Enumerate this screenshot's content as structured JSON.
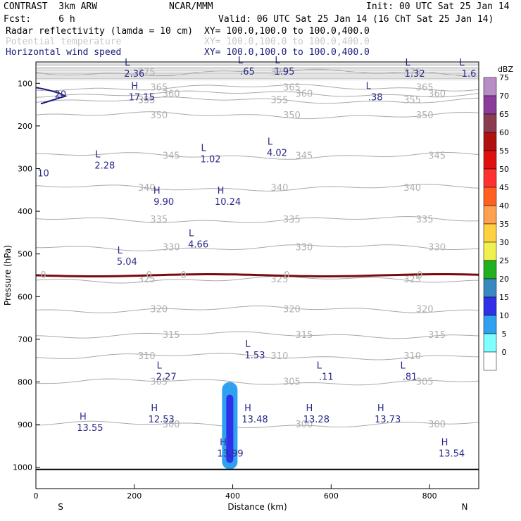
{
  "header": {
    "line1_left": "CONTRAST  3km ARW",
    "line1_mid": "NCAR/MMM",
    "line1_right": "Init: 00 UTC Sat 25 Jan 14",
    "line2_left": "Fcst:     6 h",
    "line2_right": "Valid: 06 UTC Sat 25 Jan 14 (16 ChT Sat 25 Jan 14)",
    "field1_name": "Radar reflectivity (lamda = 10 cm)",
    "field1_xy": "XY= 100.0,100.0 to 100.0,400.0",
    "field2_name": "Potential temperature",
    "field2_xy": "XY= 100.0,100.0 to 100.0,400.0",
    "field3_name": "Horizontal wind speed",
    "field3_xy": "XY= 100.0,100.0 to 100.0,400.0"
  },
  "colors": {
    "theta": "#aaaaaa",
    "wind": "#1a1a7a",
    "freezing": "#7a0a0a",
    "ground": "#000000"
  },
  "chart_data": {
    "type": "cross-section",
    "xlabel": "Distance (km)",
    "ylabel": "Pressure (hPa)",
    "xlim": [
      0,
      900
    ],
    "ylim_hPa": [
      1050,
      50
    ],
    "xticks": [
      "0",
      "200",
      "400",
      "600",
      "800"
    ],
    "xtick_values": [
      0,
      200,
      400,
      600,
      800
    ],
    "yticks": [
      "100",
      "200",
      "300",
      "400",
      "500",
      "600",
      "700",
      "800",
      "900",
      "1000"
    ],
    "ytick_values": [
      100,
      200,
      300,
      400,
      500,
      600,
      700,
      800,
      900,
      1000
    ],
    "x_ends": {
      "left": "S",
      "right": "N"
    },
    "colorbar": {
      "unit": "dBZ",
      "levels": [
        "75",
        "70",
        "65",
        "60",
        "55",
        "50",
        "45",
        "40",
        "35",
        "30",
        "25",
        "20",
        "15",
        "10",
        "5",
        "0"
      ],
      "colors": [
        "#b88cc4",
        "#8a3c9a",
        "#8c3c50",
        "#b01010",
        "#e01010",
        "#ff3030",
        "#ff6020",
        "#ffa050",
        "#ffd040",
        "#f0f050",
        "#20b020",
        "#3a88c0",
        "#3030e8",
        "#30a0f0",
        "#80ffff",
        "#ffffff"
      ]
    },
    "theta_contours": [
      {
        "label": "375",
        "p": 75
      },
      {
        "label": "365",
        "p": 110
      },
      {
        "label": "360",
        "p": 125
      },
      {
        "label": "355",
        "p": 140
      },
      {
        "label": "350",
        "p": 175
      },
      {
        "label": "345",
        "p": 270
      },
      {
        "label": "340",
        "p": 345
      },
      {
        "label": "335",
        "p": 420
      },
      {
        "label": "330",
        "p": 485
      },
      {
        "label": "325",
        "p": 560
      },
      {
        "label": "320",
        "p": 630
      },
      {
        "label": "315",
        "p": 690
      },
      {
        "label": "310",
        "p": 740
      },
      {
        "label": "305",
        "p": 800
      },
      {
        "label": "300",
        "p": 900
      }
    ],
    "freezing_level": {
      "label": "0",
      "p": 550
    },
    "wind_extrema": [
      {
        "type": "L",
        "value": "2.36",
        "x": 200,
        "p": 75
      },
      {
        "type": "L",
        "value": ".65",
        "x": 430,
        "p": 70
      },
      {
        "type": "L",
        "value": "1.95",
        "x": 505,
        "p": 70
      },
      {
        "type": "L",
        "value": "1.32",
        "x": 770,
        "p": 75
      },
      {
        "type": "L",
        "value": "1.6",
        "x": 880,
        "p": 75
      },
      {
        "type": "H",
        "value": "17.15",
        "x": 215,
        "p": 130
      },
      {
        "type": "L",
        "value": ".38",
        "x": 690,
        "p": 130
      },
      {
        "type": "L",
        "value": "4.02",
        "x": 490,
        "p": 260
      },
      {
        "type": "L",
        "value": "1.02",
        "x": 355,
        "p": 275
      },
      {
        "type": "L",
        "value": "2.28",
        "x": 140,
        "p": 290
      },
      {
        "type": "H",
        "value": "9.90",
        "x": 260,
        "p": 375
      },
      {
        "type": "H",
        "value": "10.24",
        "x": 390,
        "p": 375
      },
      {
        "type": "L",
        "value": "4.66",
        "x": 330,
        "p": 475
      },
      {
        "type": "L",
        "value": "5.04",
        "x": 185,
        "p": 515
      },
      {
        "type": "L",
        "value": "1.53",
        "x": 445,
        "p": 735
      },
      {
        "type": "L",
        "value": "2.27",
        "x": 265,
        "p": 785
      },
      {
        "type": "L",
        "value": ".11",
        "x": 590,
        "p": 785
      },
      {
        "type": "L",
        "value": ".81",
        "x": 760,
        "p": 785
      },
      {
        "type": "H",
        "value": "12.53",
        "x": 255,
        "p": 885
      },
      {
        "type": "H",
        "value": "13.48",
        "x": 445,
        "p": 885
      },
      {
        "type": "H",
        "value": "13.28",
        "x": 570,
        "p": 885
      },
      {
        "type": "H",
        "value": "13.73",
        "x": 715,
        "p": 885
      },
      {
        "type": "H",
        "value": "13.55",
        "x": 110,
        "p": 905
      },
      {
        "type": "H",
        "value": "13.99",
        "x": 395,
        "p": 965
      },
      {
        "type": "H",
        "value": "13.54",
        "x": 845,
        "p": 965
      }
    ],
    "wind_contour_labels": [
      {
        "value": "20",
        "x": 50,
        "p": 125
      },
      {
        "value": "10",
        "x": 15,
        "p": 310
      }
    ],
    "reflectivity_cells": [
      {
        "x": 394,
        "p_top": 800,
        "p_bottom": 1005,
        "dbz": 10
      },
      {
        "x": 394,
        "p_top": 830,
        "p_bottom": 990,
        "dbz": 15
      }
    ],
    "ground_p": 1005
  }
}
